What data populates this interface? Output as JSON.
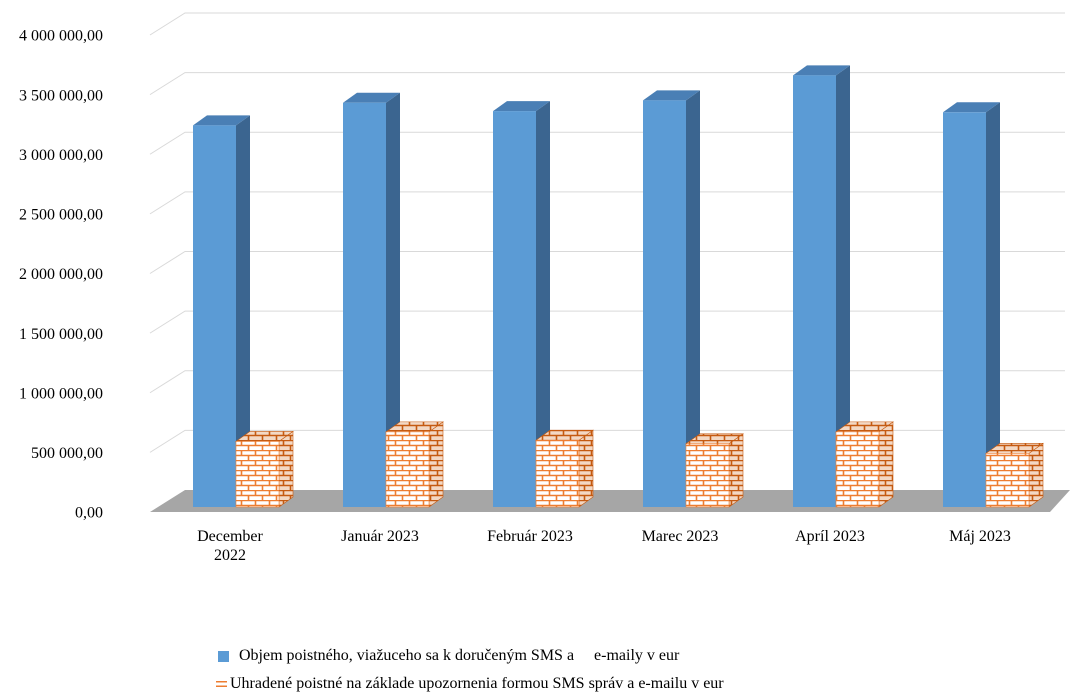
{
  "chart_data": {
    "type": "bar3d",
    "categories": [
      "December 2022",
      "Január 2023",
      "Február 2023",
      "Marec 2023",
      "Apríl 2023",
      "Máj 2023"
    ],
    "series": [
      {
        "name": "Objem poistného, viažuceho sa k doručeným SMS a     e-maily v eur",
        "color": "#5b9bd5",
        "values": [
          3200000,
          3390000,
          3320000,
          3410000,
          3620000,
          3310000
        ]
      },
      {
        "name": "Uhradené poistné na základe upozornenia formou SMS správ a e-mailu v eur",
        "color": "#ed7d31",
        "values": [
          550000,
          630000,
          560000,
          530000,
          630000,
          450000
        ]
      }
    ],
    "ylim": [
      0,
      4000000
    ],
    "yticks": [
      {
        "value": 0,
        "label": "0,00"
      },
      {
        "value": 500000,
        "label": "500 000,00"
      },
      {
        "value": 1000000,
        "label": "1 000 000,00"
      },
      {
        "value": 1500000,
        "label": "1 500 000,00"
      },
      {
        "value": 2000000,
        "label": "2 000 000,00"
      },
      {
        "value": 2500000,
        "label": "2 500 000,00"
      },
      {
        "value": 3000000,
        "label": "3 000 000,00"
      },
      {
        "value": 3500000,
        "label": "3 500 000,00"
      },
      {
        "value": 4000000,
        "label": "4 000 000,00"
      }
    ],
    "grid": true
  }
}
